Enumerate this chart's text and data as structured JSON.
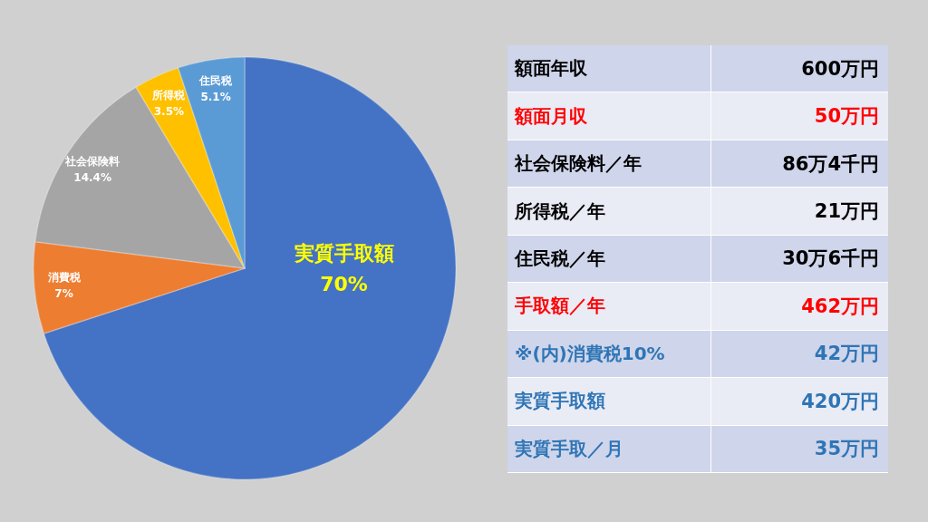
{
  "chart_data": [
    {
      "type": "pie",
      "categories": [
        "実質手取額",
        "消費税",
        "社会保険料",
        "所得税",
        "住民税"
      ],
      "values": [
        70,
        7,
        14.4,
        3.5,
        5.1
      ],
      "colors": [
        "#4472c4",
        "#ed7d31",
        "#a5a5a5",
        "#ffc000",
        "#5b9bd5"
      ],
      "value_labels": [
        "70%",
        "7%",
        "14.4%",
        "3.5%",
        "5.1%"
      ]
    },
    {
      "type": "other",
      "categories": [
        "額面年収",
        "額面月収",
        "社会保険料／年",
        "所得税／年",
        "住民税／年",
        "手取額／年",
        "※(内)消費税10%",
        "実質手取額",
        "実質手取／月"
      ],
      "value_labels": [
        "600万円",
        "50万円",
        "86万4千円",
        "21万円",
        "30万6千円",
        "462万円",
        "42万円",
        "420万円",
        "35万円"
      ],
      "colors": [
        "#cfd5ea",
        "#e9ebf5",
        "#cfd5ea",
        "#e9ebf5",
        "#cfd5ea",
        "#e9ebf5",
        "#cfd5ea",
        "#e9ebf5",
        "#cfd5ea"
      ]
    }
  ]
}
